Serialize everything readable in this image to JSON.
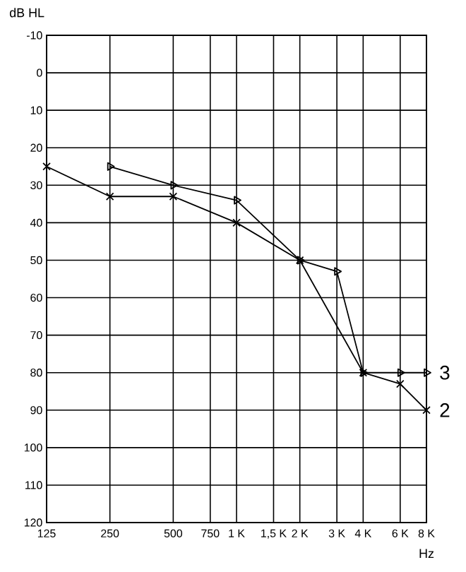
{
  "chart_data": {
    "type": "line",
    "xlabel": "Hz",
    "ylabel": "dB HL",
    "log": "x",
    "grid": true,
    "legend": false,
    "line_style": "solid",
    "xlim": [
      125,
      8000
    ],
    "ylim": [
      120,
      -10
    ],
    "xticks": [
      125,
      250,
      500,
      750,
      {
        "value": 1000,
        "label": "1 K"
      },
      {
        "value": 1500,
        "label": "1,5 K"
      },
      {
        "value": 2000,
        "label": "2 K"
      },
      {
        "value": 3000,
        "label": "3 K"
      },
      {
        "value": 4000,
        "label": "4 K"
      },
      {
        "value": 6000,
        "label": "6 K"
      },
      {
        "value": 8000,
        "label": "8 K"
      }
    ],
    "yticks": [
      -10,
      0,
      10,
      20,
      30,
      40,
      50,
      60,
      70,
      80,
      90,
      100,
      110,
      120
    ],
    "series": [
      {
        "name": "3",
        "color": "#000000",
        "marker": "triangle",
        "x": [
          250,
          500,
          1000,
          2000,
          3000,
          4000,
          6000,
          8000
        ],
        "values": [
          25,
          30,
          34,
          50,
          53,
          80,
          80,
          80
        ]
      },
      {
        "name": "2",
        "color": "#000000",
        "marker": "cross",
        "x": [
          125,
          250,
          500,
          1000,
          2000,
          4000,
          6000,
          8000
        ],
        "values": [
          25,
          33,
          33,
          40,
          50,
          80,
          83,
          90
        ]
      }
    ]
  }
}
